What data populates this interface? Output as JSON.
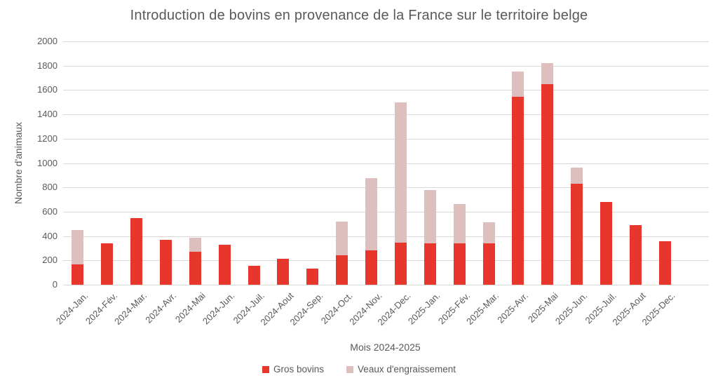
{
  "chart_data": {
    "type": "bar",
    "stacked": true,
    "title": "Introduction de bovins en provenance de la France sur le territoire belge",
    "xlabel": "Mois 2024-2025",
    "ylabel": "Nombre d'animaux",
    "ylim": [
      0,
      2000
    ],
    "ytick_step": 200,
    "grid": true,
    "legend_position": "bottom",
    "categories": [
      "2024-Jan.",
      "2024-Fév.",
      "2024-Mar.",
      "2024-Avr.",
      "2024-Mai",
      "2024-Jun.",
      "2024-Juil.",
      "2024-Aout",
      "2024-Sep.",
      "2024-Oct.",
      "2024-Nov.",
      "2024-Dec.",
      "2025-Jan.",
      "2025-Fév.",
      "2025-Mar.",
      "2025-Avr.",
      "2025-Mai",
      "2025-Jun.",
      "2025-Juil.",
      "2025-Aout",
      "2025-Dec."
    ],
    "series": [
      {
        "name": "Gros bovins",
        "color": "#e7372c",
        "values": [
          165,
          340,
          545,
          370,
          270,
          330,
          155,
          215,
          130,
          240,
          280,
          345,
          340,
          340,
          340,
          1545,
          1650,
          830,
          680,
          490,
          355
        ]
      },
      {
        "name": "Veaux d'engraissement",
        "color": "#ddbfbe",
        "values": [
          285,
          0,
          0,
          0,
          115,
          0,
          0,
          0,
          0,
          280,
          595,
          1155,
          440,
          325,
          175,
          210,
          170,
          135,
          0,
          0,
          0
        ]
      }
    ]
  },
  "colors": {
    "grid": "#d9d9d9",
    "text": "#595959"
  }
}
